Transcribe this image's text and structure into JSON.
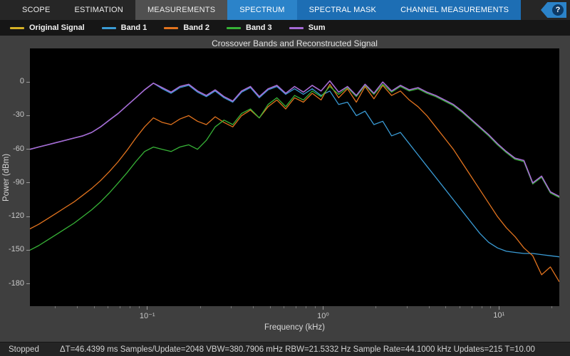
{
  "toolbar": {
    "tabs": [
      {
        "id": "scope",
        "label": "SCOPE"
      },
      {
        "id": "estimation",
        "label": "ESTIMATION"
      },
      {
        "id": "measurements",
        "label": "MEASUREMENTS"
      },
      {
        "id": "spectrum",
        "label": "SPECTRUM"
      },
      {
        "id": "spectral-mask",
        "label": "SPECTRAL MASK"
      },
      {
        "id": "channel-measurements",
        "label": "CHANNEL MEASUREMENTS"
      }
    ],
    "help_label": "?"
  },
  "title": "Crossover Bands and Reconstructed Signal",
  "axes": {
    "x_label": "Frequency (kHz)",
    "y_label": "Power (dBm)",
    "x_ticks": [
      {
        "v": 0.1,
        "label": "10⁻¹"
      },
      {
        "v": 1,
        "label": "10⁰"
      },
      {
        "v": 10,
        "label": "10¹"
      }
    ],
    "y_ticks": [
      0,
      -30,
      -60,
      -90,
      -120,
      -150,
      -180
    ]
  },
  "status": {
    "state": "Stopped",
    "stats": "ΔT=46.4399 ms  Samples/Update=2048  VBW=380.7906 mHz  RBW=21.5332 Hz  Sample Rate=44.1000 kHz  Updates=215  T=10.00"
  },
  "chart_data": {
    "type": "line",
    "title": "Crossover Bands and Reconstructed Signal",
    "xlabel": "Frequency (kHz)",
    "ylabel": "Power (dBm)",
    "x_scale": "log",
    "xlim": [
      0.0215,
      22.05
    ],
    "ylim": [
      -200,
      30
    ],
    "legend_position": "top",
    "x": [
      0.0215,
      0.0241,
      0.0271,
      0.0304,
      0.0341,
      0.0383,
      0.043,
      0.0483,
      0.0542,
      0.0608,
      0.0683,
      0.0766,
      0.086,
      0.0965,
      0.1083,
      0.1216,
      0.1365,
      0.1532,
      0.172,
      0.193,
      0.2167,
      0.2432,
      0.273,
      0.3064,
      0.3439,
      0.3861,
      0.4333,
      0.4864,
      0.546,
      0.6128,
      0.6879,
      0.7722,
      0.8667,
      0.9729,
      1.092,
      1.2257,
      1.3758,
      1.5443,
      1.7334,
      1.9457,
      2.184,
      2.4515,
      2.7517,
      3.0887,
      3.467,
      3.8916,
      4.3682,
      4.9032,
      5.5037,
      6.1777,
      6.9343,
      7.7836,
      8.7369,
      9.8069,
      11.008,
      12.356,
      13.869,
      15.568,
      17.474,
      19.614,
      22.016
    ],
    "series": [
      {
        "name": "Original Signal",
        "color": "#d6b125",
        "values": [
          -60,
          -58,
          -56,
          -54,
          -52,
          -50,
          -48,
          -45,
          -40,
          -34,
          -28,
          -21,
          -14,
          -7,
          -1,
          -5,
          -9,
          -4,
          -2,
          -8,
          -12,
          -7,
          -13,
          -17,
          -8,
          -4,
          -13,
          -6,
          -3,
          -10,
          -4,
          -9,
          -3,
          -8,
          1,
          -9,
          -4,
          -12,
          -2,
          -10,
          0,
          -8,
          -3,
          -7,
          -5,
          -9,
          -12,
          -16,
          -20,
          -26,
          -33,
          -40,
          -47,
          -55,
          -62,
          -68,
          -70,
          -90,
          -84,
          -98,
          -102
        ]
      },
      {
        "name": "Band 1",
        "color": "#3a9bd5",
        "values": [
          -60,
          -58,
          -56,
          -54,
          -52,
          -50,
          -48,
          -45,
          -40,
          -34,
          -28,
          -21,
          -14,
          -7,
          -1,
          -6,
          -10,
          -5,
          -3,
          -9,
          -13,
          -8,
          -14,
          -18,
          -9,
          -5,
          -14,
          -7,
          -4,
          -11,
          -6,
          -11,
          -6,
          -12,
          -8,
          -20,
          -18,
          -30,
          -26,
          -38,
          -35,
          -48,
          -45,
          -55,
          -65,
          -75,
          -85,
          -95,
          -105,
          -115,
          -125,
          -135,
          -143,
          -148,
          -151,
          -152,
          -153,
          -153,
          -154,
          -155,
          -156
        ]
      },
      {
        "name": "Band 2",
        "color": "#e2731e",
        "values": [
          -131,
          -127,
          -122,
          -117,
          -112,
          -107,
          -101,
          -95,
          -88,
          -80,
          -71,
          -61,
          -50,
          -40,
          -32,
          -36,
          -38,
          -33,
          -30,
          -35,
          -38,
          -31,
          -36,
          -40,
          -30,
          -25,
          -32,
          -22,
          -16,
          -24,
          -14,
          -18,
          -10,
          -16,
          -2,
          -14,
          -6,
          -18,
          -4,
          -15,
          -3,
          -12,
          -8,
          -16,
          -22,
          -30,
          -40,
          -50,
          -60,
          -72,
          -84,
          -96,
          -108,
          -120,
          -130,
          -138,
          -148,
          -155,
          -172,
          -165,
          -178
        ]
      },
      {
        "name": "Band 3",
        "color": "#37b337",
        "values": [
          -150,
          -146,
          -141,
          -136,
          -131,
          -126,
          -120,
          -114,
          -107,
          -99,
          -90,
          -81,
          -71,
          -62,
          -58,
          -60,
          -62,
          -58,
          -56,
          -60,
          -52,
          -40,
          -34,
          -38,
          -28,
          -24,
          -32,
          -20,
          -14,
          -22,
          -12,
          -16,
          -8,
          -13,
          -4,
          -11,
          -5,
          -13,
          -3,
          -11,
          -2,
          -9,
          -4,
          -8,
          -6,
          -10,
          -13,
          -17,
          -21,
          -27,
          -34,
          -41,
          -48,
          -56,
          -63,
          -69,
          -71,
          -91,
          -85,
          -99,
          -103
        ]
      },
      {
        "name": "Sum",
        "color": "#a569d6",
        "values": [
          -60,
          -58,
          -56,
          -54,
          -52,
          -50,
          -48,
          -45,
          -40,
          -34,
          -28,
          -21,
          -14,
          -7,
          -1,
          -5,
          -9,
          -4,
          -2,
          -8,
          -12,
          -7,
          -13,
          -17,
          -8,
          -4,
          -13,
          -6,
          -3,
          -10,
          -4,
          -9,
          -3,
          -8,
          1,
          -9,
          -4,
          -12,
          -2,
          -10,
          0,
          -8,
          -3,
          -7,
          -5,
          -9,
          -12,
          -16,
          -20,
          -26,
          -33,
          -40,
          -47,
          -55,
          -62,
          -68,
          -70,
          -90,
          -84,
          -98,
          -102
        ]
      }
    ]
  }
}
